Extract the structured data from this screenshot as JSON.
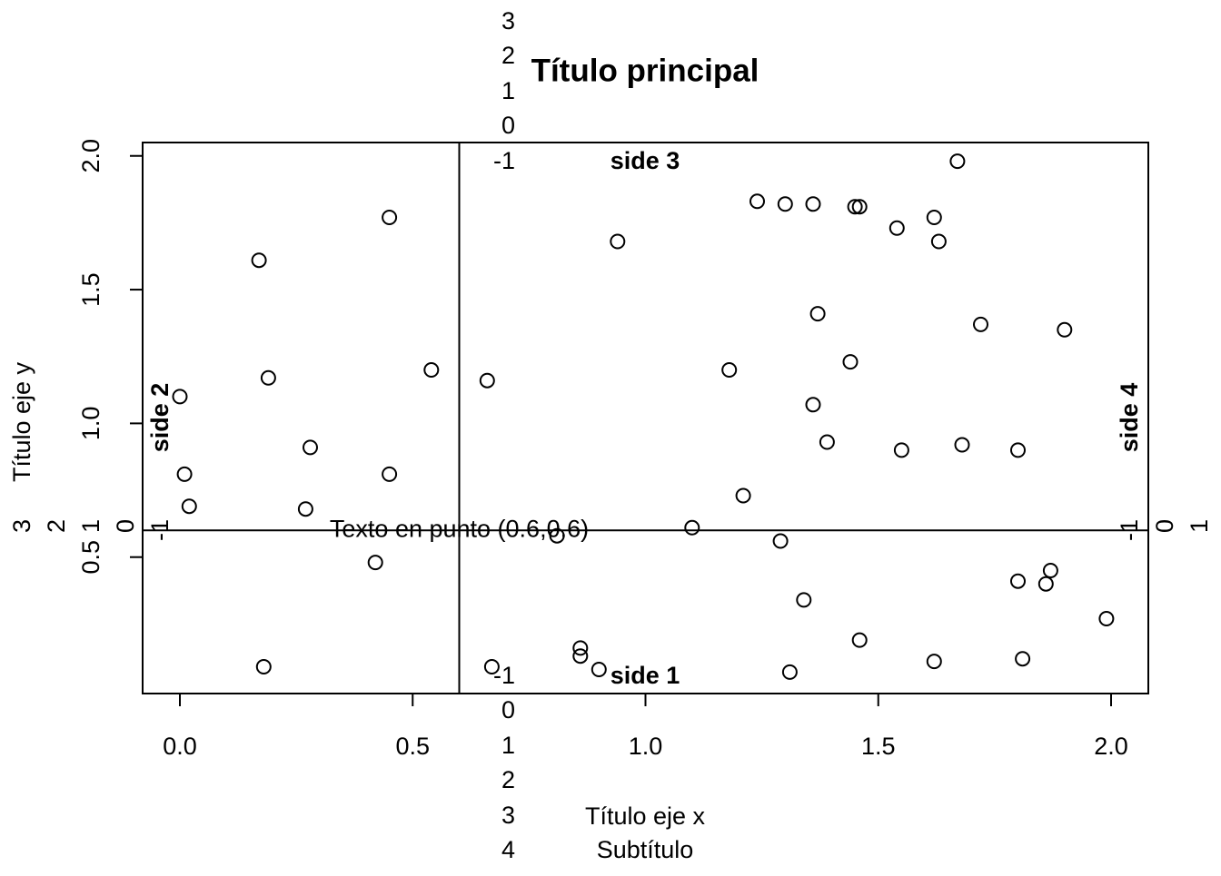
{
  "chart_data": {
    "type": "scatter",
    "title": "Título principal",
    "subtitle": "Subtítulo",
    "xlabel": "Título eje x",
    "ylabel": "Título eje y",
    "xlim": [
      -0.08,
      2.08
    ],
    "ylim": [
      -0.01,
      2.05
    ],
    "x_ticks": [
      0.0,
      0.5,
      1.0,
      1.5,
      2.0
    ],
    "x_tick_labels": [
      "0.0",
      "0.5",
      "1.0",
      "1.5",
      "2.0"
    ],
    "y_ticks": [
      0.5,
      1.0,
      1.5,
      2.0
    ],
    "y_tick_labels": [
      "0.5",
      "1.0",
      "1.5",
      "2.0"
    ],
    "grid": false,
    "reference_lines": {
      "v": 0.6,
      "h": 0.6
    },
    "annotation": {
      "x": 0.6,
      "y": 0.6,
      "text": "Texto en punto (0.6,0.6)"
    },
    "side_labels": {
      "bottom": "side 1",
      "left": "side 2",
      "top": "side 3",
      "right": "side 4"
    },
    "margin_line_labels": {
      "bottom": [
        "-1",
        "0",
        "1",
        "2",
        "3",
        "4"
      ],
      "left": [
        "-1",
        "0",
        "1",
        "2",
        "3"
      ],
      "top": [
        "-1",
        "0",
        "1",
        "2",
        "3"
      ],
      "right": [
        "-1",
        "0",
        "1"
      ]
    },
    "points": [
      {
        "x": 0.0,
        "y": 1.1
      },
      {
        "x": 0.01,
        "y": 0.81
      },
      {
        "x": 0.02,
        "y": 0.69
      },
      {
        "x": 0.17,
        "y": 1.61
      },
      {
        "x": 0.18,
        "y": 0.09
      },
      {
        "x": 0.19,
        "y": 1.17
      },
      {
        "x": 0.27,
        "y": 0.68
      },
      {
        "x": 0.28,
        "y": 0.91
      },
      {
        "x": 0.42,
        "y": 0.48
      },
      {
        "x": 0.45,
        "y": 1.77
      },
      {
        "x": 0.45,
        "y": 0.81
      },
      {
        "x": 0.54,
        "y": 1.2
      },
      {
        "x": 0.66,
        "y": 1.16
      },
      {
        "x": 0.67,
        "y": 0.09
      },
      {
        "x": 0.81,
        "y": 0.58
      },
      {
        "x": 0.86,
        "y": 0.16
      },
      {
        "x": 0.86,
        "y": 0.13
      },
      {
        "x": 0.9,
        "y": 0.08
      },
      {
        "x": 0.94,
        "y": 1.68
      },
      {
        "x": 1.1,
        "y": 0.61
      },
      {
        "x": 1.18,
        "y": 1.2
      },
      {
        "x": 1.21,
        "y": 0.73
      },
      {
        "x": 1.24,
        "y": 1.83
      },
      {
        "x": 1.29,
        "y": 0.56
      },
      {
        "x": 1.3,
        "y": 1.82
      },
      {
        "x": 1.31,
        "y": 0.07
      },
      {
        "x": 1.34,
        "y": 0.34
      },
      {
        "x": 1.36,
        "y": 1.82
      },
      {
        "x": 1.36,
        "y": 1.07
      },
      {
        "x": 1.37,
        "y": 1.41
      },
      {
        "x": 1.39,
        "y": 0.93
      },
      {
        "x": 1.44,
        "y": 1.23
      },
      {
        "x": 1.45,
        "y": 1.81
      },
      {
        "x": 1.46,
        "y": 1.81
      },
      {
        "x": 1.46,
        "y": 0.19
      },
      {
        "x": 1.54,
        "y": 1.73
      },
      {
        "x": 1.55,
        "y": 0.9
      },
      {
        "x": 1.62,
        "y": 1.77
      },
      {
        "x": 1.62,
        "y": 0.11
      },
      {
        "x": 1.63,
        "y": 1.68
      },
      {
        "x": 1.67,
        "y": 1.98
      },
      {
        "x": 1.68,
        "y": 0.92
      },
      {
        "x": 1.72,
        "y": 1.37
      },
      {
        "x": 1.8,
        "y": 0.41
      },
      {
        "x": 1.8,
        "y": 0.9
      },
      {
        "x": 1.81,
        "y": 0.12
      },
      {
        "x": 1.86,
        "y": 0.4
      },
      {
        "x": 1.87,
        "y": 0.45
      },
      {
        "x": 1.9,
        "y": 1.35
      },
      {
        "x": 1.99,
        "y": 0.27
      }
    ]
  }
}
